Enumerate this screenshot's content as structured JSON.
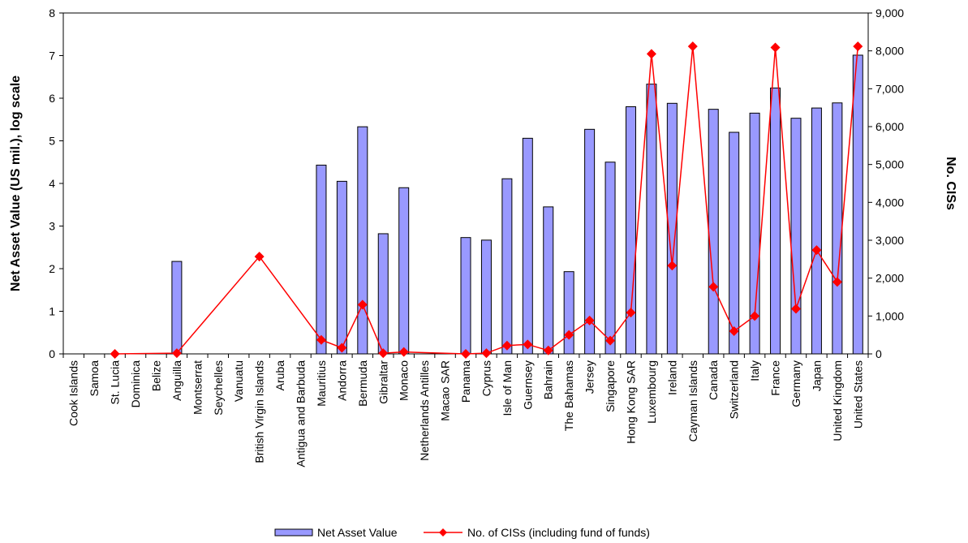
{
  "chart_data": {
    "type": "bar+line",
    "categories": [
      "Cook Islands",
      "Samoa",
      "St. Lucia",
      "Dominica",
      "Belize",
      "Anguilla",
      "Montserrat",
      "Seychelles",
      "Vanuatu",
      "British Virgin Islands",
      "Aruba",
      "Antigua and Barbuda",
      "Mauritius",
      "Andorra",
      "Bermuda",
      "Gibraltar",
      "Monaco",
      "Netherlands Antilles",
      "Macao SAR",
      "Panama",
      "Cyprus",
      "Isle of Man",
      "Guernsey",
      "Bahrain",
      "The Bahamas",
      "Jersey",
      "Singapore",
      "Hong Kong SAR",
      "Luxembourg",
      "Ireland",
      "Cayman Islands",
      "Canada",
      "Switzerland",
      "Italy",
      "France",
      "Germany",
      "Japan",
      "United Kingdom",
      "United States"
    ],
    "series": [
      {
        "name": "Net Asset Value",
        "type": "bar",
        "axis": "left",
        "color": "#9999ff",
        "values": [
          null,
          null,
          null,
          null,
          null,
          2.17,
          null,
          null,
          null,
          null,
          null,
          null,
          4.43,
          4.05,
          5.33,
          2.82,
          3.9,
          null,
          null,
          2.73,
          2.67,
          4.11,
          5.06,
          3.45,
          1.93,
          5.27,
          4.5,
          5.8,
          6.33,
          5.88,
          null,
          5.74,
          5.2,
          5.65,
          6.24,
          5.53,
          5.77,
          5.89,
          7.01
        ]
      },
      {
        "name": "No. of CISs (including fund of funds)",
        "type": "line",
        "axis": "right",
        "color": "#ff0000",
        "marker": "diamond",
        "values": [
          null,
          null,
          0,
          null,
          null,
          20,
          null,
          null,
          null,
          2570,
          null,
          null,
          370,
          160,
          1300,
          20,
          50,
          null,
          null,
          0,
          20,
          220,
          250,
          90,
          500,
          880,
          350,
          1090,
          7920,
          2330,
          8120,
          1770,
          600,
          1000,
          8090,
          1190,
          2740,
          1900,
          8120
        ]
      }
    ],
    "title": "",
    "xlabel": "",
    "ylabel": "Net Asset Value (US mil.), log scale",
    "y2label": "No. CISs",
    "ylim": [
      0,
      8
    ],
    "y2lim": [
      0,
      9000
    ],
    "yticks": [
      "0",
      "1",
      "2",
      "3",
      "4",
      "5",
      "6",
      "7",
      "8"
    ],
    "y2ticks": [
      "0",
      "1,000",
      "2,000",
      "3,000",
      "4,000",
      "5,000",
      "6,000",
      "7,000",
      "8,000",
      "9,000"
    ],
    "grid": false,
    "legend_position": "bottom-center"
  }
}
